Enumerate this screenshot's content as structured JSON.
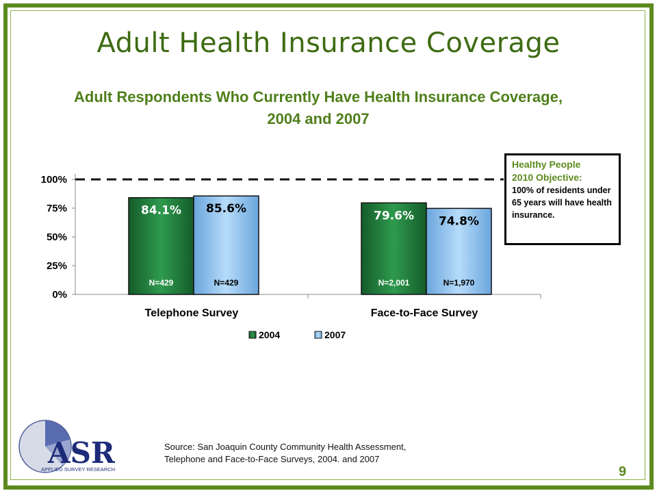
{
  "slide": {
    "title": "Adult Health Insurance Coverage",
    "page_number": "9",
    "source_line1": "Source: San Joaquin County Community Health Assessment,",
    "source_line2": "Telephone and Face-to-Face Surveys, 2004. and 2007"
  },
  "objective": {
    "heading_line1": "Healthy People",
    "heading_line2": "2010 Objective:",
    "body": "100% of residents under 65 years will have health insurance."
  },
  "logo": {
    "letters": "ASR",
    "tagline": "APPLIED SURVEY RESEARCH"
  },
  "colors": {
    "frame": "#5c8a1e",
    "title": "#3e6b12",
    "bar_2004": "#1f7a3a",
    "bar_2007": "#8fc1ec"
  },
  "chart_data": {
    "type": "bar",
    "title": "Adult Respondents Who Currently Have Health Insurance Coverage, 2004 and 2007",
    "categories": [
      "Telephone Survey",
      "Face-to-Face Survey"
    ],
    "series": [
      {
        "name": "2004",
        "values": [
          84.1,
          79.6
        ],
        "value_labels": [
          "84.1%",
          "79.6%"
        ],
        "n_labels": [
          "N=429",
          "N=2,001"
        ],
        "color": "#1f7a3a"
      },
      {
        "name": "2007",
        "values": [
          85.6,
          74.8
        ],
        "value_labels": [
          "85.6%",
          "74.8%"
        ],
        "n_labels": [
          "N=429",
          "N=1,970"
        ],
        "color": "#8fc1ec"
      }
    ],
    "ylim": [
      0,
      100
    ],
    "yticks": [
      0,
      25,
      50,
      75,
      100
    ],
    "ytick_labels": [
      "0%",
      "25%",
      "50%",
      "75%",
      "100%"
    ],
    "reference_line": 100,
    "xlabel": "",
    "ylabel": "",
    "legend": "bottom",
    "grid": false
  }
}
